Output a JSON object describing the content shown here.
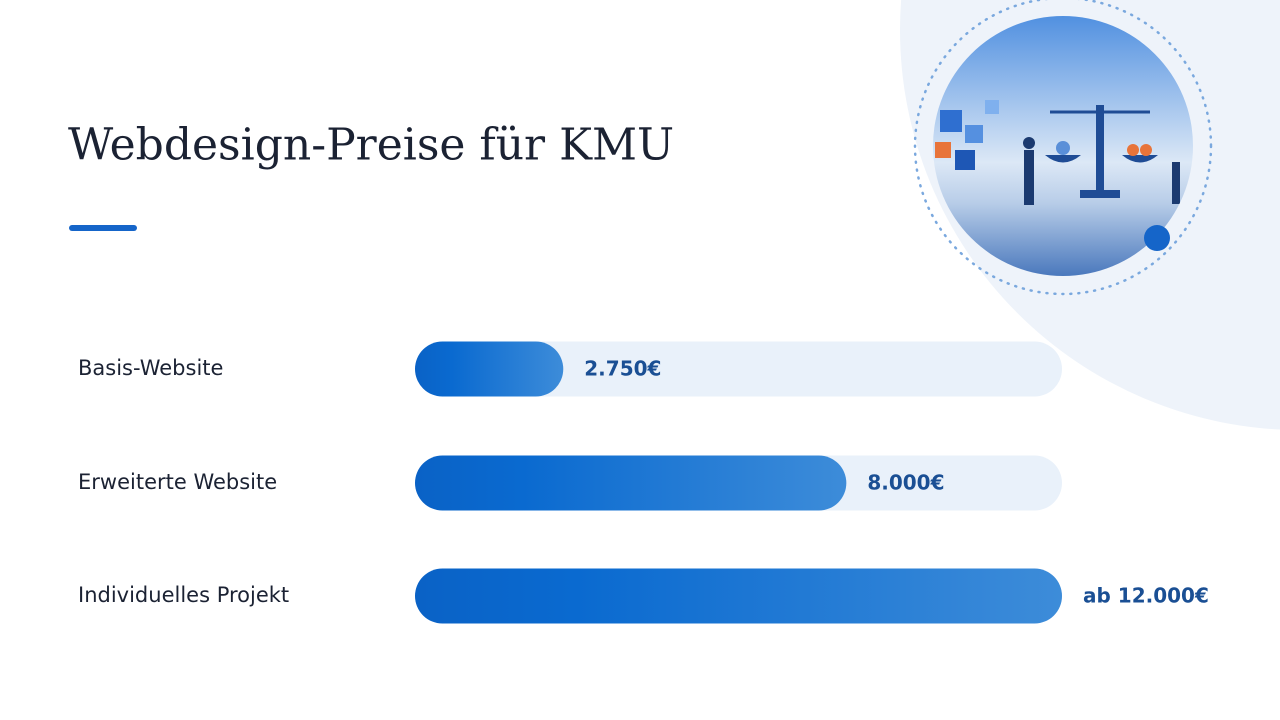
{
  "chart_data": {
    "type": "bar",
    "orientation": "horizontal",
    "title": "Webdesign-Preise für KMU",
    "categories": [
      "Basis-Website",
      "Erweiterte Website",
      "Individuelles Projekt"
    ],
    "values": [
      2750,
      8000,
      12000
    ],
    "value_labels": [
      "2.750€",
      "8.000€",
      "ab 12.000€"
    ],
    "color": "#0a66c9",
    "xlim": [
      0,
      12000
    ]
  }
}
